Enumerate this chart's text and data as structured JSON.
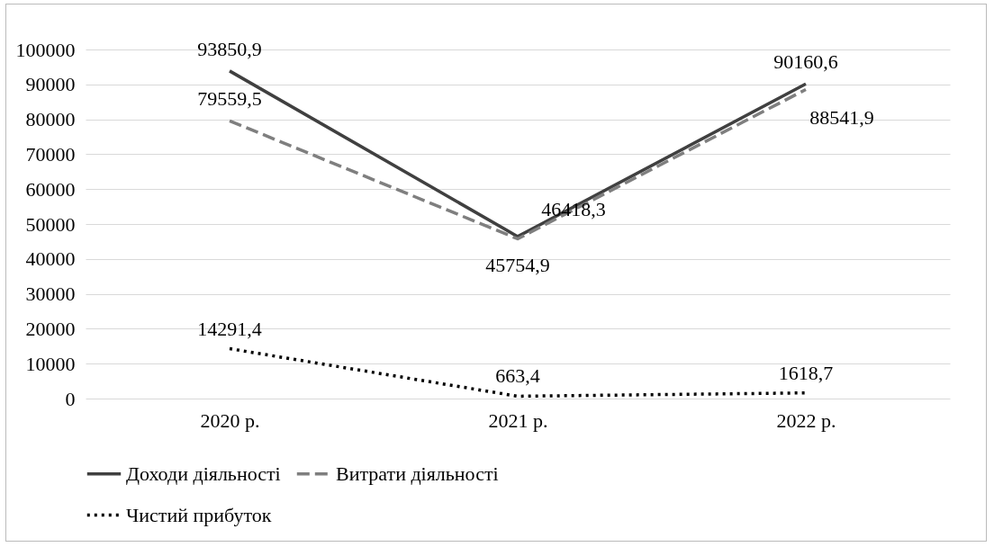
{
  "chart_data": {
    "type": "line",
    "categories": [
      "2020 р.",
      "2021 р.",
      "2022 р."
    ],
    "series": [
      {
        "name": "Доходи діяльності",
        "color": "#404040",
        "line_style": "solid",
        "values": [
          93850.9,
          46418.3,
          90160.6
        ],
        "value_labels": [
          "93850,9",
          "46418,3",
          "90160,6"
        ]
      },
      {
        "name": "Витрати діяльності",
        "color": "#7f7f7f",
        "line_style": "dashed",
        "values": [
          79559.5,
          45754.9,
          88541.9
        ],
        "value_labels": [
          "79559,5",
          "45754,9",
          "88541,9"
        ]
      },
      {
        "name": "Чистий прибуток",
        "color": "#000000",
        "line_style": "dotted",
        "values": [
          14291.4,
          663.4,
          1618.7
        ],
        "value_labels": [
          "14291,4",
          "663,4",
          "1618,7"
        ]
      }
    ],
    "ylim": [
      0,
      100000
    ],
    "yticks": [
      0,
      10000,
      20000,
      30000,
      40000,
      50000,
      60000,
      70000,
      80000,
      90000,
      100000
    ],
    "grid": "y",
    "legend": "bottom"
  }
}
